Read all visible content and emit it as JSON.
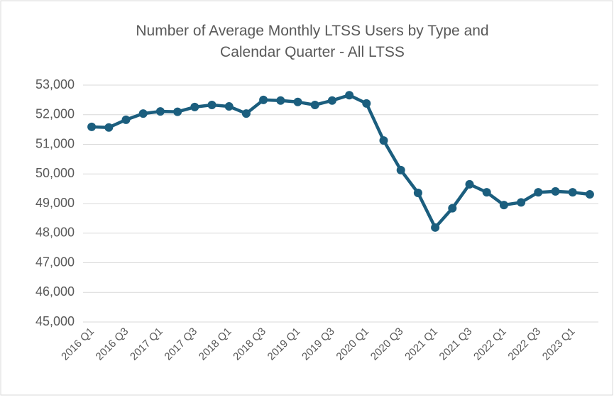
{
  "chart_data": {
    "type": "line",
    "title": [
      "Number of Average Monthly LTSS Users by Type and",
      "Calendar Quarter - All LTSS"
    ],
    "categories": [
      "2016 Q1",
      null,
      "2016 Q3",
      null,
      "2017 Q1",
      null,
      "2017 Q3",
      null,
      "2018 Q1",
      null,
      "2018 Q3",
      null,
      "2019 Q1",
      null,
      "2019 Q3",
      null,
      "2020 Q1",
      null,
      "2020 Q3",
      null,
      "2021 Q1",
      null,
      "2021 Q3",
      null,
      "2022 Q1",
      null,
      "2022 Q3",
      null,
      "2023 Q1",
      null
    ],
    "series": [
      {
        "color": "#1b5e7e",
        "values": [
          51590,
          51570,
          51830,
          52040,
          52110,
          52100,
          52260,
          52330,
          52280,
          52040,
          52500,
          52480,
          52430,
          52330,
          52480,
          52660,
          52380,
          51130,
          50130,
          49360,
          48190,
          48840,
          49650,
          49380,
          48950,
          49040,
          49380,
          49410,
          49380,
          49310
        ]
      }
    ],
    "ylim": [
      45000,
      53000
    ],
    "yticks": [
      {
        "value": 45000,
        "label": "45,000"
      },
      {
        "value": 46000,
        "label": "46,000"
      },
      {
        "value": 47000,
        "label": "47,000"
      },
      {
        "value": 48000,
        "label": "48,000"
      },
      {
        "value": 49000,
        "label": "49,000"
      },
      {
        "value": 50000,
        "label": "50,000"
      },
      {
        "value": 51000,
        "label": "51,000"
      },
      {
        "value": 52000,
        "label": "52,000"
      },
      {
        "value": 53000,
        "label": "53,000"
      }
    ],
    "grid": true
  }
}
